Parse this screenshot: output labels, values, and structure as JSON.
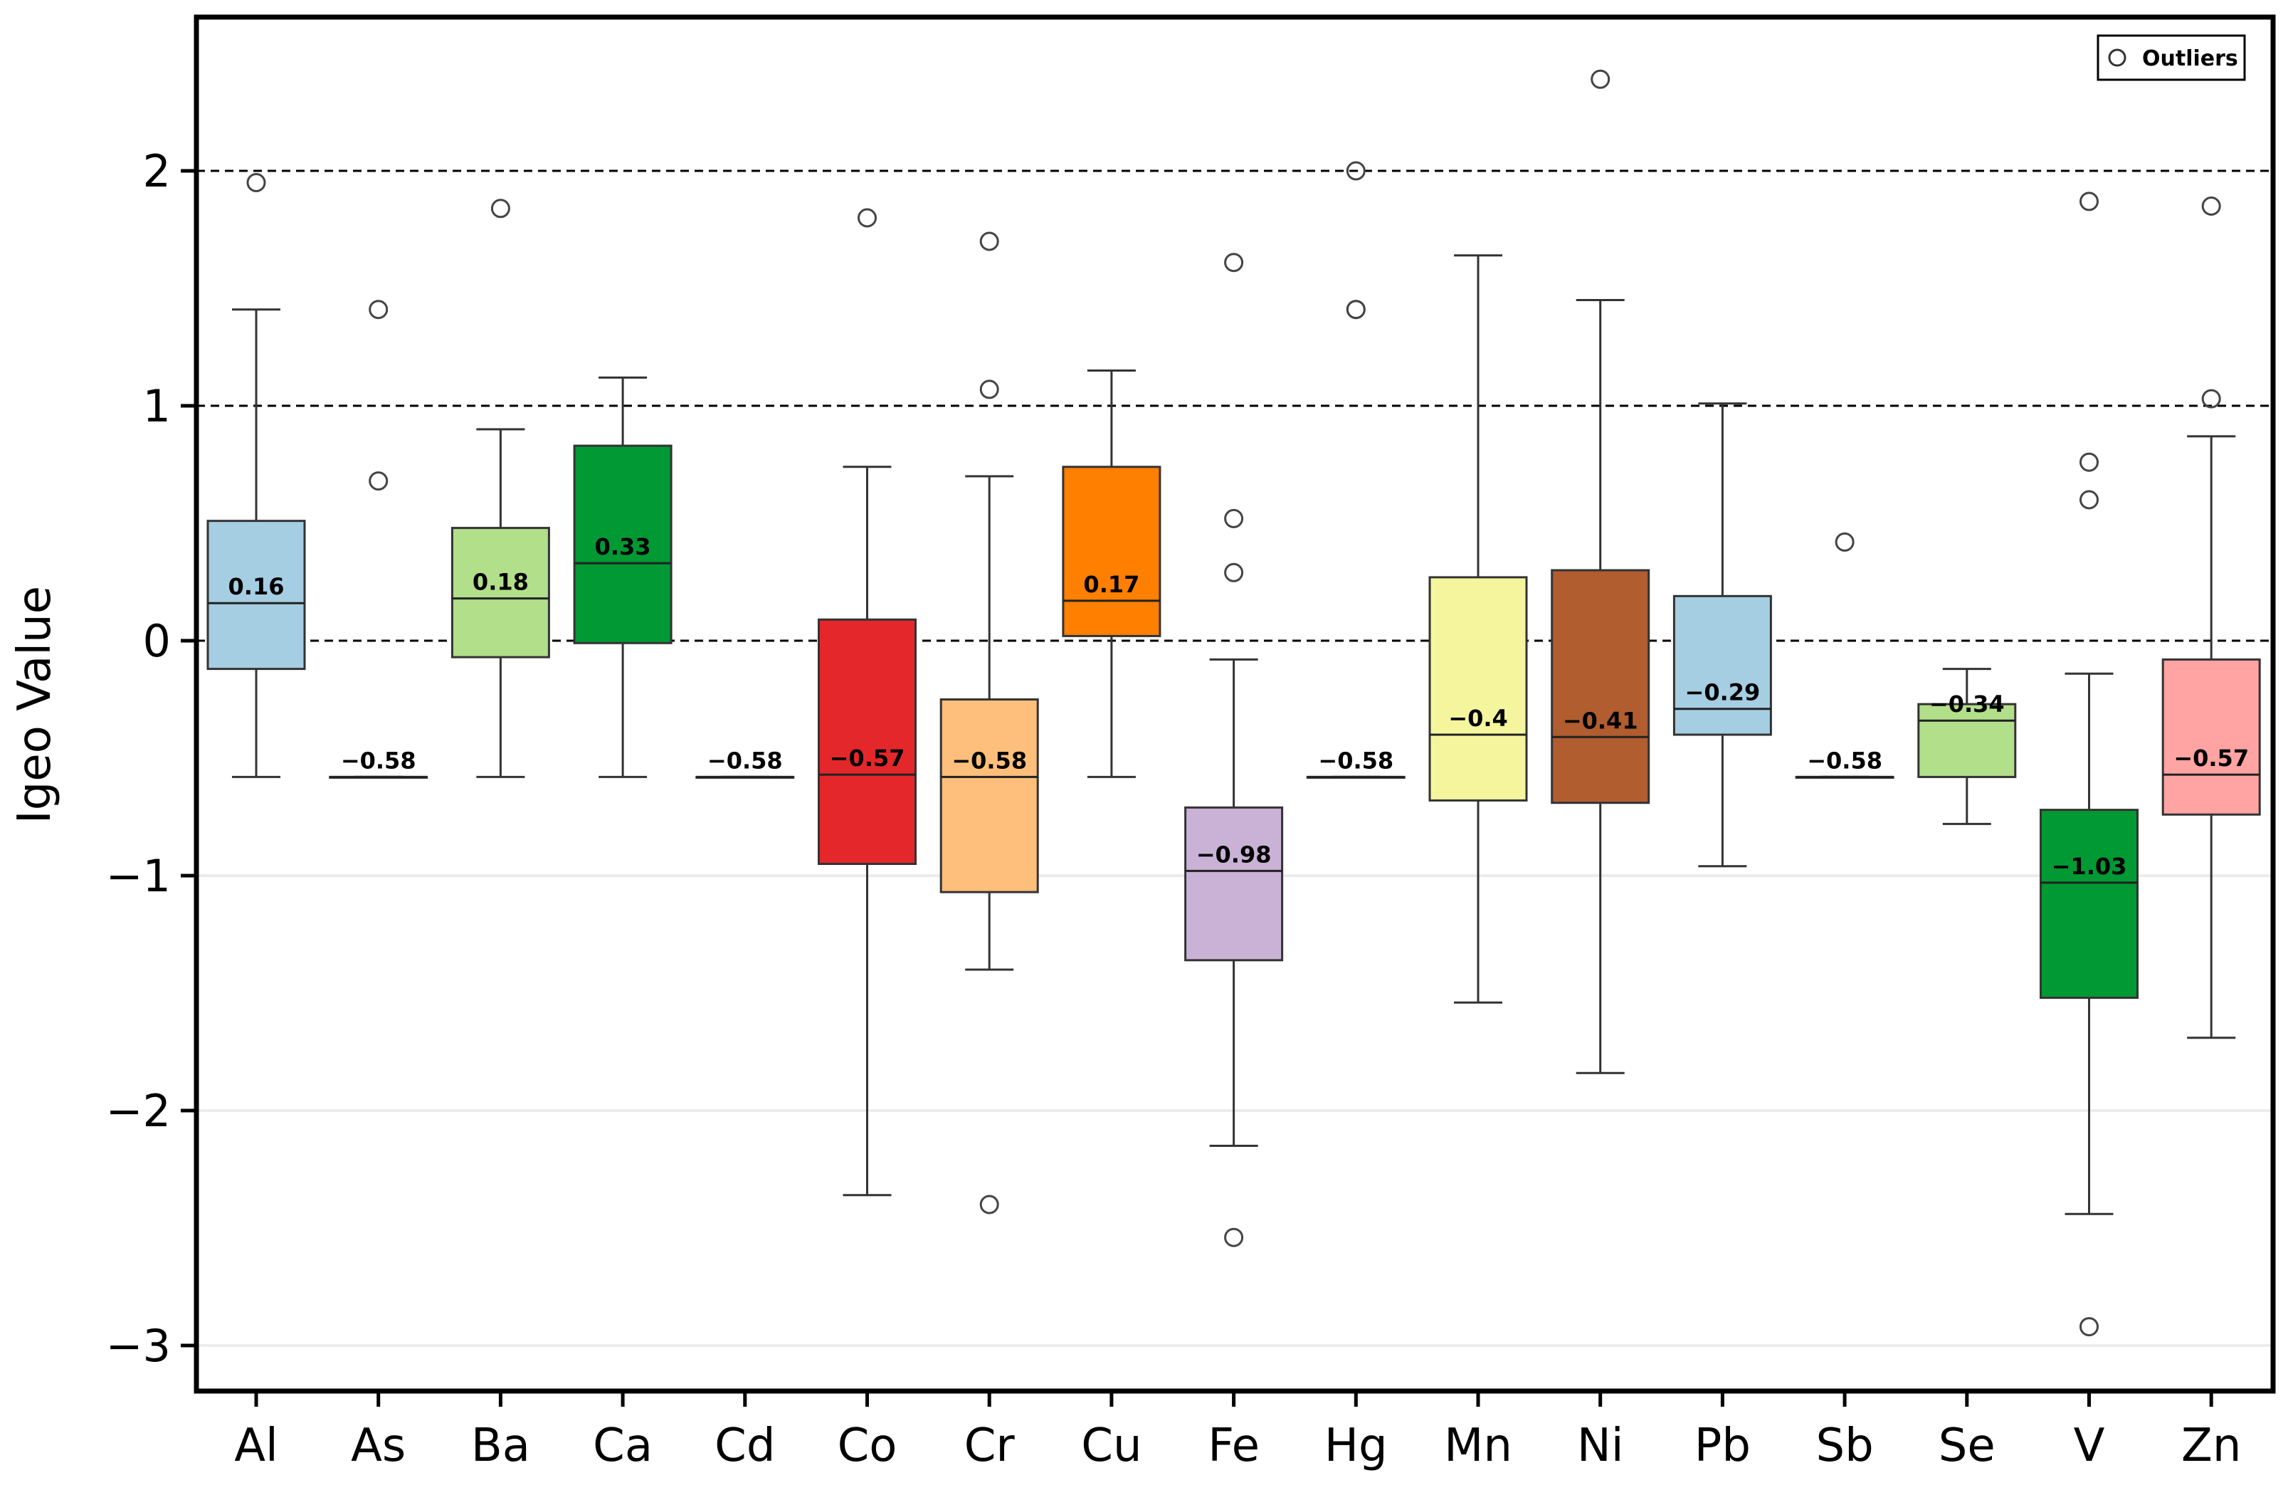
{
  "chart_data": {
    "type": "boxplot",
    "title": "",
    "xlabel": "",
    "ylabel": "Igeo Value",
    "ylim": [
      -3.2,
      2.6
    ],
    "yticks": [
      2,
      1,
      0,
      -1,
      -2,
      -3
    ],
    "ytick_labels": [
      "2",
      "1",
      "0",
      "−1",
      "−2",
      "−3"
    ],
    "reference_lines": [
      2,
      1,
      0
    ],
    "legend": {
      "label": "Outliers",
      "marker": "open-circle",
      "placement": "top-right"
    },
    "categories": [
      "Al",
      "As",
      "Ba",
      "Ca",
      "Cd",
      "Co",
      "Cr",
      "Cu",
      "Fe",
      "Hg",
      "Mn",
      "Ni",
      "Pb",
      "Sb",
      "Se",
      "V",
      "Zn"
    ],
    "boxes": [
      {
        "name": "Al",
        "color": "#a6cee3",
        "whisker_low": -0.58,
        "q1": -0.12,
        "median": 0.16,
        "q3": 0.51,
        "whisker_high": 1.41,
        "outliers": [
          1.95
        ],
        "label": "0.16"
      },
      {
        "name": "As",
        "color": "#a6cee3",
        "whisker_low": -0.58,
        "q1": -0.58,
        "median": -0.58,
        "q3": -0.58,
        "whisker_high": -0.58,
        "outliers": [
          0.68,
          1.41
        ],
        "label": "−0.58"
      },
      {
        "name": "Ba",
        "color": "#b2df8a",
        "whisker_low": -0.58,
        "q1": -0.07,
        "median": 0.18,
        "q3": 0.48,
        "whisker_high": 0.9,
        "outliers": [
          1.84
        ],
        "label": "0.18"
      },
      {
        "name": "Ca",
        "color": "#009933",
        "whisker_low": -0.58,
        "q1": -0.01,
        "median": 0.33,
        "q3": 0.83,
        "whisker_high": 1.12,
        "outliers": [],
        "label": "0.33"
      },
      {
        "name": "Cd",
        "color": "#a6cee3",
        "whisker_low": -0.58,
        "q1": -0.58,
        "median": -0.58,
        "q3": -0.58,
        "whisker_high": -0.58,
        "outliers": [],
        "label": "−0.58"
      },
      {
        "name": "Co",
        "color": "#e4272a",
        "whisker_low": -2.36,
        "q1": -0.95,
        "median": -0.57,
        "q3": 0.09,
        "whisker_high": 0.74,
        "outliers": [
          1.8
        ],
        "label": "−0.57"
      },
      {
        "name": "Cr",
        "color": "#fdbf7b",
        "whisker_low": -1.4,
        "q1": -1.07,
        "median": -0.58,
        "q3": -0.25,
        "whisker_high": 0.7,
        "outliers": [
          1.07,
          1.7,
          -2.4
        ],
        "label": "−0.58"
      },
      {
        "name": "Cu",
        "color": "#ff7f00",
        "whisker_low": -0.58,
        "q1": 0.02,
        "median": 0.17,
        "q3": 0.74,
        "whisker_high": 1.15,
        "outliers": [],
        "label": "0.17"
      },
      {
        "name": "Fe",
        "color": "#cab2d6",
        "whisker_low": -2.15,
        "q1": -1.36,
        "median": -0.98,
        "q3": -0.71,
        "whisker_high": -0.08,
        "outliers": [
          1.61,
          0.52,
          0.29,
          -2.54
        ],
        "label": "−0.98"
      },
      {
        "name": "Hg",
        "color": "#a6cee3",
        "whisker_low": -0.58,
        "q1": -0.58,
        "median": -0.58,
        "q3": -0.58,
        "whisker_high": -0.58,
        "outliers": [
          2.0,
          1.41,
          1.41
        ],
        "label": "−0.58"
      },
      {
        "name": "Mn",
        "color": "#f5f59d",
        "whisker_low": -1.54,
        "q1": -0.68,
        "median": -0.4,
        "q3": 0.27,
        "whisker_high": 1.64,
        "outliers": [],
        "label": "−0.4"
      },
      {
        "name": "Ni",
        "color": "#b15d30",
        "whisker_low": -1.84,
        "q1": -0.69,
        "median": -0.41,
        "q3": 0.3,
        "whisker_high": 1.45,
        "outliers": [
          2.39
        ],
        "label": "−0.41"
      },
      {
        "name": "Pb",
        "color": "#a6cee3",
        "whisker_low": -0.96,
        "q1": -0.4,
        "median": -0.29,
        "q3": 0.19,
        "whisker_high": 1.01,
        "outliers": [],
        "label": "−0.29"
      },
      {
        "name": "Sb",
        "color": "#a6cee3",
        "whisker_low": -0.58,
        "q1": -0.58,
        "median": -0.58,
        "q3": -0.58,
        "whisker_high": -0.58,
        "outliers": [
          0.42
        ],
        "label": "−0.58"
      },
      {
        "name": "Se",
        "color": "#b2df8a",
        "whisker_low": -0.78,
        "q1": -0.58,
        "median": -0.34,
        "q3": -0.27,
        "whisker_high": -0.12,
        "outliers": [],
        "label": "−0.34"
      },
      {
        "name": "V",
        "color": "#009933",
        "whisker_low": -2.44,
        "q1": -1.52,
        "median": -1.03,
        "q3": -0.72,
        "whisker_high": -0.14,
        "outliers": [
          1.87,
          0.76,
          0.6,
          -2.92
        ],
        "label": "−1.03"
      },
      {
        "name": "Zn",
        "color": "#ffa3a3",
        "whisker_low": -1.69,
        "q1": -0.74,
        "median": -0.57,
        "q3": -0.08,
        "whisker_high": 0.87,
        "outliers": [
          1.85,
          1.03
        ],
        "label": "−0.57"
      }
    ]
  }
}
